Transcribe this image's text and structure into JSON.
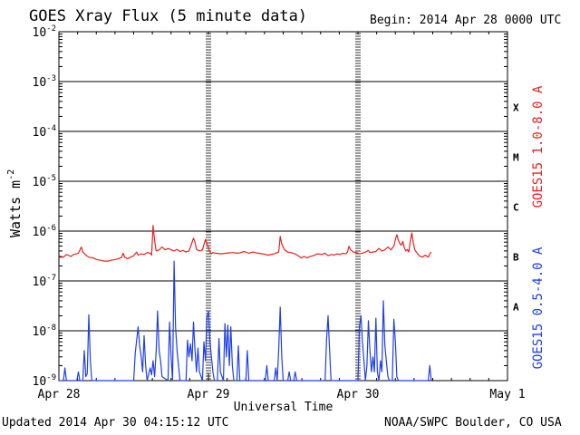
{
  "header": {
    "title": "GOES Xray Flux (5 minute data)",
    "begin": "Begin:  2014 Apr 28 0000 UTC"
  },
  "footer": {
    "updated": "Updated 2014 Apr 30 04:15:12 UTC",
    "source": "NOAA/SWPC Boulder, CO USA"
  },
  "chart_data": {
    "type": "line",
    "title": "GOES Xray Flux (5 minute data)",
    "xlabel": "Universal Time",
    "ylabel": "Watts m",
    "ylabel_sup": "-2",
    "y_scale": "log",
    "ylim_exponents": [
      -9,
      -2
    ],
    "y_ticks": [
      {
        "base": "10",
        "exp": "-9"
      },
      {
        "base": "10",
        "exp": "-8"
      },
      {
        "base": "10",
        "exp": "-7"
      },
      {
        "base": "10",
        "exp": "-6"
      },
      {
        "base": "10",
        "exp": "-5"
      },
      {
        "base": "10",
        "exp": "-4"
      },
      {
        "base": "10",
        "exp": "-3"
      },
      {
        "base": "10",
        "exp": "-2"
      }
    ],
    "x_ticks": [
      "Apr 28",
      "Apr 29",
      "Apr 30",
      "May 1"
    ],
    "xlim_days": [
      0,
      3
    ],
    "flare_classes": [
      {
        "label": "X",
        "exp": -4
      },
      {
        "label": "M",
        "exp": -5
      },
      {
        "label": "C",
        "exp": -6
      },
      {
        "label": "B",
        "exp": -7
      },
      {
        "label": "A",
        "exp": -8
      }
    ],
    "series": [
      {
        "name": "GOES15 1.0-8.0 A",
        "color": "#e8221e",
        "points": [
          [
            0.0,
            3.2e-07
          ],
          [
            0.03,
            3e-07
          ],
          [
            0.05,
            3.4e-07
          ],
          [
            0.08,
            3.1e-07
          ],
          [
            0.1,
            3.4e-07
          ],
          [
            0.13,
            3.6e-07
          ],
          [
            0.15,
            4.8e-07
          ],
          [
            0.16,
            3.8e-07
          ],
          [
            0.18,
            3.3e-07
          ],
          [
            0.2,
            3e-07
          ],
          [
            0.23,
            2.9e-07
          ],
          [
            0.25,
            2.7e-07
          ],
          [
            0.28,
            2.6e-07
          ],
          [
            0.3,
            2.5e-07
          ],
          [
            0.33,
            2.5e-07
          ],
          [
            0.35,
            2.6e-07
          ],
          [
            0.38,
            2.7e-07
          ],
          [
            0.4,
            2.8e-07
          ],
          [
            0.42,
            3e-07
          ],
          [
            0.43,
            3.6e-07
          ],
          [
            0.44,
            3e-07
          ],
          [
            0.46,
            2.8e-07
          ],
          [
            0.48,
            3e-07
          ],
          [
            0.5,
            3.2e-07
          ],
          [
            0.52,
            3.8e-07
          ],
          [
            0.53,
            3.3e-07
          ],
          [
            0.55,
            3.5e-07
          ],
          [
            0.57,
            3.4e-07
          ],
          [
            0.59,
            3.7e-07
          ],
          [
            0.61,
            3.6e-07
          ],
          [
            0.62,
            3.3e-07
          ],
          [
            0.63,
            1.3e-06
          ],
          [
            0.64,
            6.5e-07
          ],
          [
            0.65,
            4e-07
          ],
          [
            0.67,
            4.2e-07
          ],
          [
            0.69,
            4.8e-07
          ],
          [
            0.71,
            4.2e-07
          ],
          [
            0.73,
            4.5e-07
          ],
          [
            0.75,
            4.2e-07
          ],
          [
            0.77,
            4e-07
          ],
          [
            0.79,
            4.3e-07
          ],
          [
            0.81,
            3.9e-07
          ],
          [
            0.83,
            4.1e-07
          ],
          [
            0.85,
            3.8e-07
          ],
          [
            0.87,
            4e-07
          ],
          [
            0.88,
            4.8e-07
          ],
          [
            0.9,
            7.2e-07
          ],
          [
            0.91,
            6e-07
          ],
          [
            0.92,
            4.3e-07
          ],
          [
            0.94,
            4e-07
          ],
          [
            0.96,
            4.2e-07
          ],
          [
            0.98,
            6.8e-07
          ],
          [
            0.99,
            5.6e-07
          ],
          [
            1.0,
            4.6e-07
          ],
          [
            1.01,
            3.8e-07
          ],
          [
            1.02,
            3.5e-07
          ],
          [
            1.03,
            3.7e-07
          ],
          [
            1.05,
            3.6e-07
          ],
          [
            1.08,
            3.5e-07
          ],
          [
            1.12,
            3.6e-07
          ],
          [
            1.16,
            3.7e-07
          ],
          [
            1.2,
            3.6e-07
          ],
          [
            1.24,
            3.9e-07
          ],
          [
            1.27,
            3.6e-07
          ],
          [
            1.3,
            3.8e-07
          ],
          [
            1.33,
            3.6e-07
          ],
          [
            1.36,
            3.5e-07
          ],
          [
            1.4,
            3.3e-07
          ],
          [
            1.44,
            3.5e-07
          ],
          [
            1.47,
            3.8e-07
          ],
          [
            1.48,
            7.8e-07
          ],
          [
            1.49,
            5.5e-07
          ],
          [
            1.51,
            4.2e-07
          ],
          [
            1.53,
            3.8e-07
          ],
          [
            1.55,
            3.7e-07
          ],
          [
            1.58,
            3.5e-07
          ],
          [
            1.6,
            3.2e-07
          ],
          [
            1.62,
            2.9e-07
          ],
          [
            1.64,
            3.1e-07
          ],
          [
            1.66,
            2.9e-07
          ],
          [
            1.68,
            3.1e-07
          ],
          [
            1.7,
            3.2e-07
          ],
          [
            1.73,
            3.5e-07
          ],
          [
            1.76,
            3.4e-07
          ],
          [
            1.78,
            3.6e-07
          ],
          [
            1.8,
            3.2e-07
          ],
          [
            1.82,
            3.4e-07
          ],
          [
            1.84,
            3.3e-07
          ],
          [
            1.86,
            3.5e-07
          ],
          [
            1.88,
            3.4e-07
          ],
          [
            1.9,
            3.6e-07
          ],
          [
            1.92,
            3.5e-07
          ],
          [
            1.93,
            3.8e-07
          ],
          [
            1.94,
            5e-07
          ],
          [
            1.95,
            4.2e-07
          ],
          [
            1.97,
            3.8e-07
          ],
          [
            1.99,
            3.7e-07
          ],
          [
            2.01,
            3.5e-07
          ],
          [
            2.03,
            3.6e-07
          ],
          [
            2.05,
            3.8e-07
          ],
          [
            2.07,
            4.1e-07
          ],
          [
            2.08,
            3.7e-07
          ],
          [
            2.1,
            3.8e-07
          ],
          [
            2.12,
            3.9e-07
          ],
          [
            2.14,
            4.5e-07
          ],
          [
            2.16,
            4e-07
          ],
          [
            2.18,
            4.2e-07
          ],
          [
            2.2,
            4.8e-07
          ],
          [
            2.22,
            4.2e-07
          ],
          [
            2.24,
            5e-07
          ],
          [
            2.25,
            6.8e-07
          ],
          [
            2.26,
            8.5e-07
          ],
          [
            2.27,
            6.5e-07
          ],
          [
            2.28,
            5.6e-07
          ],
          [
            2.29,
            5.2e-07
          ],
          [
            2.3,
            6.2e-07
          ],
          [
            2.31,
            4.6e-07
          ],
          [
            2.32,
            4e-07
          ],
          [
            2.33,
            4.3e-07
          ],
          [
            2.34,
            3.8e-07
          ],
          [
            2.35,
            6.4e-07
          ],
          [
            2.36,
            9.2e-07
          ],
          [
            2.37,
            5.8e-07
          ],
          [
            2.38,
            4.2e-07
          ],
          [
            2.39,
            3.8e-07
          ],
          [
            2.41,
            3.2e-07
          ],
          [
            2.43,
            3e-07
          ],
          [
            2.45,
            3.3e-07
          ],
          [
            2.47,
            3e-07
          ],
          [
            2.48,
            3.5e-07
          ],
          [
            2.49,
            3.8e-07
          ]
        ]
      },
      {
        "name": "GOES15 0.5-4.0 A",
        "color": "#1f3fe8",
        "points": [
          [
            0.0,
            1e-09
          ],
          [
            0.03,
            1e-09
          ],
          [
            0.04,
            1.8e-09
          ],
          [
            0.05,
            1e-09
          ],
          [
            0.12,
            1e-09
          ],
          [
            0.13,
            1.5e-09
          ],
          [
            0.14,
            1e-09
          ],
          [
            0.16,
            1e-09
          ],
          [
            0.17,
            4e-09
          ],
          [
            0.18,
            1.2e-09
          ],
          [
            0.19,
            1.4e-09
          ],
          [
            0.2,
            2.1e-08
          ],
          [
            0.21,
            2.5e-09
          ],
          [
            0.22,
            1e-09
          ],
          [
            0.5,
            1e-09
          ],
          [
            0.51,
            3.5e-09
          ],
          [
            0.52,
            6.5e-09
          ],
          [
            0.53,
            1.2e-08
          ],
          [
            0.54,
            5e-09
          ],
          [
            0.55,
            3e-09
          ],
          [
            0.56,
            1.5e-09
          ],
          [
            0.57,
            8e-09
          ],
          [
            0.58,
            2e-09
          ],
          [
            0.59,
            1e-09
          ],
          [
            0.61,
            1.8e-09
          ],
          [
            0.62,
            1.3e-09
          ],
          [
            0.63,
            2.5e-09
          ],
          [
            0.64,
            1.2e-09
          ],
          [
            0.65,
            3.8e-09
          ],
          [
            0.66,
            2.5e-08
          ],
          [
            0.67,
            4e-09
          ],
          [
            0.68,
            2.5e-09
          ],
          [
            0.69,
            1.2e-09
          ],
          [
            0.73,
            1e-09
          ],
          [
            0.74,
            1.5e-08
          ],
          [
            0.75,
            3e-09
          ],
          [
            0.76,
            1e-09
          ],
          [
            0.77,
            2.5e-07
          ],
          [
            0.78,
            1.2e-08
          ],
          [
            0.79,
            4e-09
          ],
          [
            0.8,
            2e-09
          ],
          [
            0.81,
            1e-09
          ],
          [
            0.85,
            1e-09
          ],
          [
            0.86,
            6.5e-09
          ],
          [
            0.87,
            3e-09
          ],
          [
            0.88,
            5.5e-09
          ],
          [
            0.89,
            2.5e-09
          ],
          [
            0.9,
            1.5e-08
          ],
          [
            0.91,
            4e-09
          ],
          [
            0.92,
            1.5e-09
          ],
          [
            0.93,
            4.5e-09
          ],
          [
            0.94,
            1.5e-09
          ],
          [
            0.96,
            1e-09
          ],
          [
            0.97,
            6e-09
          ],
          [
            0.98,
            2.5e-09
          ],
          [
            0.99,
            1.8e-08
          ],
          [
            1.0,
            2.5e-08
          ],
          [
            1.01,
            6e-09
          ],
          [
            1.02,
            3e-09
          ],
          [
            1.03,
            1.5e-09
          ],
          [
            1.04,
            1e-09
          ],
          [
            1.06,
            1e-09
          ],
          [
            1.07,
            7e-09
          ],
          [
            1.08,
            1.5e-09
          ],
          [
            1.1,
            1e-09
          ],
          [
            1.11,
            1.4e-08
          ],
          [
            1.12,
            3e-09
          ],
          [
            1.13,
            1.3e-08
          ],
          [
            1.14,
            2e-09
          ],
          [
            1.15,
            1.2e-08
          ],
          [
            1.16,
            2e-09
          ],
          [
            1.17,
            1e-09
          ],
          [
            1.19,
            1e-09
          ],
          [
            1.2,
            5e-09
          ],
          [
            1.21,
            1e-09
          ],
          [
            1.25,
            1e-09
          ],
          [
            1.26,
            4e-09
          ],
          [
            1.27,
            1e-09
          ],
          [
            1.38,
            1e-09
          ],
          [
            1.39,
            2e-09
          ],
          [
            1.4,
            1e-09
          ],
          [
            1.44,
            1e-09
          ],
          [
            1.45,
            1.8e-09
          ],
          [
            1.46,
            1e-09
          ],
          [
            1.47,
            4e-09
          ],
          [
            1.48,
            3e-08
          ],
          [
            1.49,
            3e-09
          ],
          [
            1.5,
            1e-09
          ],
          [
            1.53,
            1e-09
          ],
          [
            1.54,
            1.5e-09
          ],
          [
            1.55,
            1e-09
          ],
          [
            1.57,
            1e-09
          ],
          [
            1.58,
            1.5e-09
          ],
          [
            1.59,
            1e-09
          ],
          [
            1.78,
            1e-09
          ],
          [
            1.79,
            7e-09
          ],
          [
            1.8,
            2e-08
          ],
          [
            1.81,
            4e-09
          ],
          [
            1.82,
            1e-09
          ],
          [
            1.98,
            1e-09
          ],
          [
            2.0,
            1e-09
          ],
          [
            2.01,
            1.2e-08
          ],
          [
            2.02,
            2e-08
          ],
          [
            2.03,
            6e-09
          ],
          [
            2.04,
            2.5e-09
          ],
          [
            2.05,
            1e-09
          ],
          [
            2.06,
            2e-09
          ],
          [
            2.07,
            1.6e-08
          ],
          [
            2.08,
            4e-09
          ],
          [
            2.09,
            1.5e-09
          ],
          [
            2.1,
            3e-09
          ],
          [
            2.11,
            1.5e-09
          ],
          [
            2.12,
            1.8e-08
          ],
          [
            2.13,
            1.5e-09
          ],
          [
            2.14,
            1e-09
          ],
          [
            2.15,
            2.5e-09
          ],
          [
            2.16,
            1.5e-09
          ],
          [
            2.17,
            4e-08
          ],
          [
            2.18,
            5e-09
          ],
          [
            2.19,
            2.5e-09
          ],
          [
            2.2,
            1.2e-09
          ],
          [
            2.21,
            1e-09
          ],
          [
            2.23,
            1e-09
          ],
          [
            2.24,
            1.7e-08
          ],
          [
            2.25,
            6e-09
          ],
          [
            2.26,
            1.2e-09
          ],
          [
            2.27,
            1e-09
          ],
          [
            2.47,
            1e-09
          ],
          [
            2.48,
            2e-09
          ],
          [
            2.49,
            1e-09
          ]
        ]
      }
    ]
  }
}
